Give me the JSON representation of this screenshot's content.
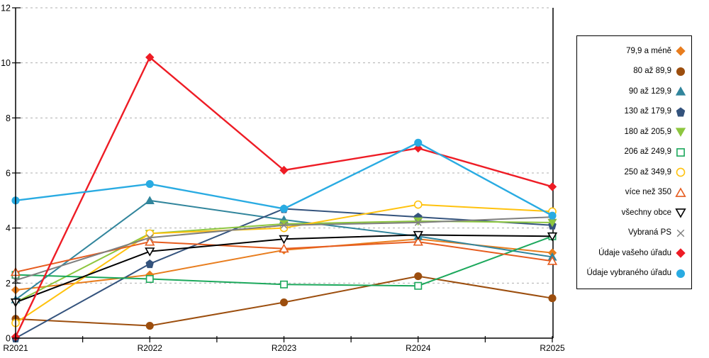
{
  "chart_data": {
    "type": "line",
    "title": "",
    "xlabel": "",
    "ylabel": "",
    "categories": [
      "R2021",
      "R2022",
      "R2023",
      "R2024",
      "R2025"
    ],
    "ylim": [
      0,
      12
    ],
    "yticks": [
      0,
      2,
      4,
      6,
      8,
      10,
      12
    ],
    "grid": "horizontal-dashed",
    "legend_position": "right",
    "series": [
      {
        "name": "79,9 a méně",
        "marker": "diamond",
        "fill": "solid",
        "color": "#E87D1E",
        "values": [
          1.75,
          2.3,
          3.2,
          3.6,
          3.1
        ]
      },
      {
        "name": "80 až 89,9",
        "marker": "circle",
        "fill": "solid",
        "color": "#9C4E0E",
        "values": [
          0.7,
          0.45,
          1.3,
          2.25,
          1.45
        ]
      },
      {
        "name": "90 až 129,9",
        "marker": "triangle-up",
        "fill": "solid",
        "color": "#31859C",
        "values": [
          1.4,
          5.0,
          4.3,
          3.7,
          2.95
        ]
      },
      {
        "name": "130 až 179,9",
        "marker": "pentagon",
        "fill": "solid",
        "color": "#34537D",
        "values": [
          0.0,
          2.7,
          4.7,
          4.4,
          4.1
        ]
      },
      {
        "name": "180 až 205,9",
        "marker": "triangle-down",
        "fill": "solid",
        "color": "#8DC63F",
        "values": [
          1.3,
          3.8,
          4.15,
          4.25,
          4.2
        ]
      },
      {
        "name": "206 až 249,9",
        "marker": "square",
        "fill": "open",
        "color": "#1CA85C",
        "values": [
          2.3,
          2.15,
          1.95,
          1.9,
          3.7
        ]
      },
      {
        "name": "250 až 349,9",
        "marker": "circle",
        "fill": "open",
        "color": "#FFC20E",
        "values": [
          0.55,
          3.8,
          4.0,
          4.85,
          4.6
        ]
      },
      {
        "name": "více než 350",
        "marker": "triangle-up",
        "fill": "open",
        "color": "#E65C1F",
        "values": [
          2.4,
          3.5,
          3.25,
          3.5,
          2.8
        ]
      },
      {
        "name": "všechny obce",
        "marker": "triangle-down",
        "fill": "open",
        "color": "#000000",
        "values": [
          1.3,
          3.15,
          3.6,
          3.75,
          3.7
        ]
      },
      {
        "name": "Vybraná PS",
        "marker": "x",
        "fill": "line",
        "color": "#7F7F7F",
        "values": [
          2.1,
          3.65,
          4.1,
          4.2,
          4.4
        ]
      },
      {
        "name": "Údaje vašeho úřadu",
        "marker": "diamond",
        "fill": "solid",
        "color": "#EE1C25",
        "values": [
          0.05,
          10.2,
          6.1,
          6.9,
          5.5
        ]
      },
      {
        "name": "Údaje vybraného úřadu",
        "marker": "circle",
        "fill": "solid",
        "color": "#29ABE2",
        "values": [
          5.0,
          5.6,
          4.7,
          7.1,
          4.45
        ]
      }
    ]
  }
}
